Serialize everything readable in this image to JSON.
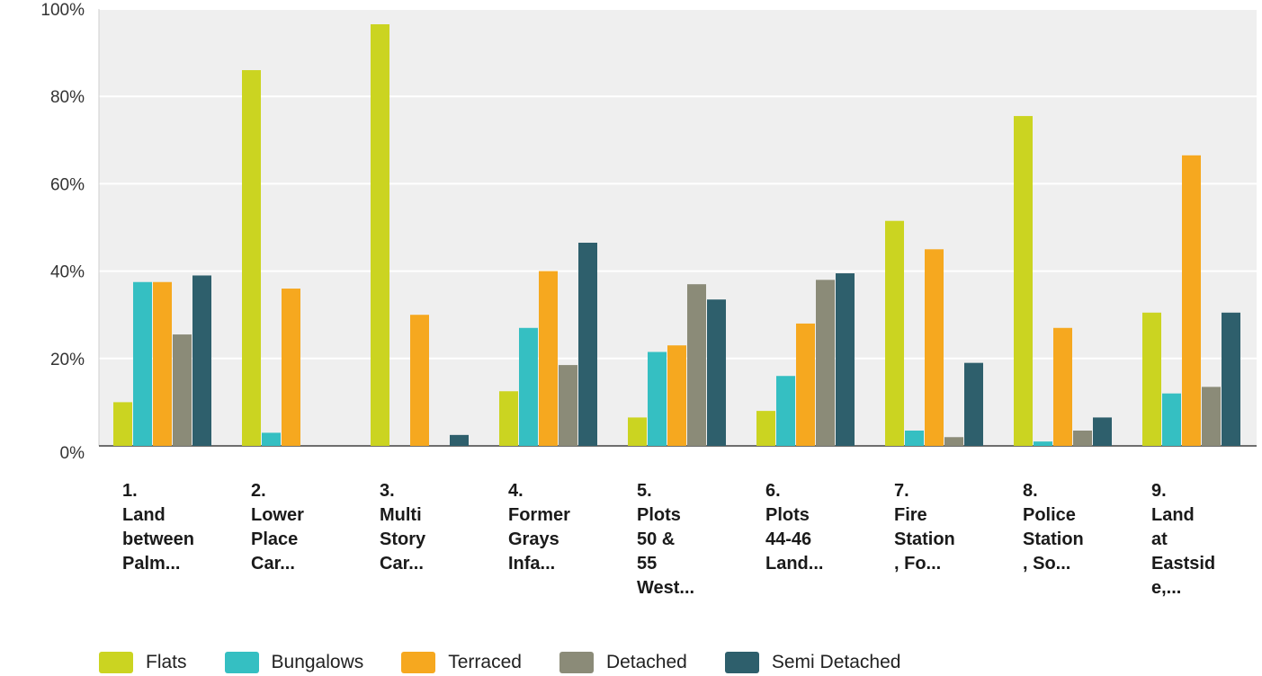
{
  "chart_data": {
    "type": "bar",
    "title": "",
    "xlabel": "",
    "ylabel": "",
    "ylim": [
      0,
      100
    ],
    "yticks": [
      "0%",
      "20%",
      "40%",
      "60%",
      "80%",
      "100%"
    ],
    "grid": true,
    "legend_position": "bottom",
    "categories": [
      "1.\nLand\nbetween\nPalm...",
      "2.\nLower\nPlace\nCar...",
      "3.\nMulti\nStory\nCar...",
      "4.\nFormer\nGrays\nInfa...",
      "5.\nPlots\n50 &\n55\nWest...",
      "6.\nPlots\n44-46\nLand...",
      "7.\nFire\nStation\n, Fo...",
      "8.\nPolice\nStation\n, So...",
      "9.\nLand\nat\nEastsid\ne,..."
    ],
    "series": [
      {
        "name": "Flats",
        "color": "#cbd421",
        "values": [
          10,
          86,
          96.5,
          12.5,
          6.5,
          8,
          51.5,
          75.5,
          30.5
        ]
      },
      {
        "name": "Bungalows",
        "color": "#35bfc2",
        "values": [
          37.5,
          3,
          0,
          27,
          21.5,
          16,
          3.5,
          1,
          12
        ]
      },
      {
        "name": "Terraced",
        "color": "#f6a81f",
        "values": [
          37.5,
          36,
          30,
          40,
          23,
          28,
          45,
          27,
          66.5
        ]
      },
      {
        "name": "Detached",
        "color": "#8b8b78",
        "values": [
          25.5,
          0,
          0,
          18.5,
          37,
          38,
          2,
          3.5,
          13.5
        ]
      },
      {
        "name": "Semi Detached",
        "color": "#2e5f6c",
        "values": [
          39,
          0,
          2.5,
          46.5,
          33.5,
          39.5,
          19,
          6.5,
          30.5
        ]
      }
    ]
  }
}
